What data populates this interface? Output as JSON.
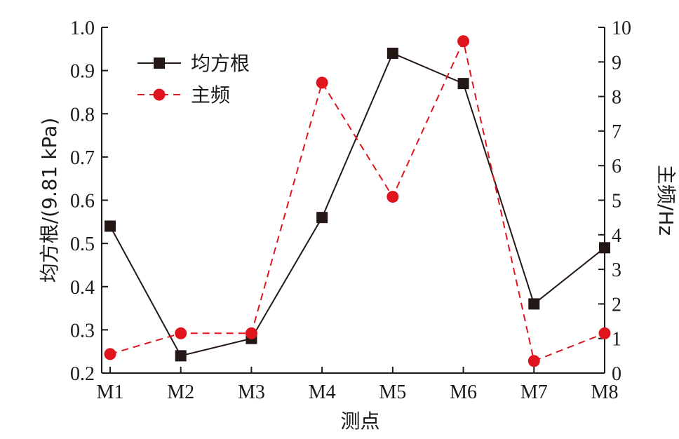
{
  "chart_data": {
    "type": "line",
    "categories": [
      "M1",
      "M2",
      "M3",
      "M4",
      "M5",
      "M6",
      "M7",
      "M8"
    ],
    "xlabel": "测点",
    "ylabel_left": "均方根/(9.81 kPa)",
    "ylabel_right": "主频/Hz",
    "ylim_left": [
      0.2,
      1.0
    ],
    "ylim_right": [
      0,
      10
    ],
    "yticks_left": [
      "0.2",
      "0.3",
      "0.4",
      "0.5",
      "0.6",
      "0.7",
      "0.8",
      "0.9",
      "1.0"
    ],
    "yticks_right": [
      "0",
      "1",
      "2",
      "3",
      "4",
      "5",
      "6",
      "7",
      "8",
      "9",
      "10"
    ],
    "legend_position": "top-left",
    "grid": false,
    "series": [
      {
        "name": "均方根",
        "axis": "left",
        "color": "#231815",
        "line_style": "solid",
        "marker": "square",
        "values": [
          0.54,
          0.24,
          0.28,
          0.56,
          0.94,
          0.87,
          0.36,
          0.49
        ]
      },
      {
        "name": "主频",
        "axis": "right",
        "color": "#e0141e",
        "line_style": "dashed",
        "marker": "circle",
        "values": [
          0.55,
          1.15,
          1.15,
          8.4,
          5.1,
          9.6,
          0.35,
          1.15
        ]
      }
    ]
  }
}
